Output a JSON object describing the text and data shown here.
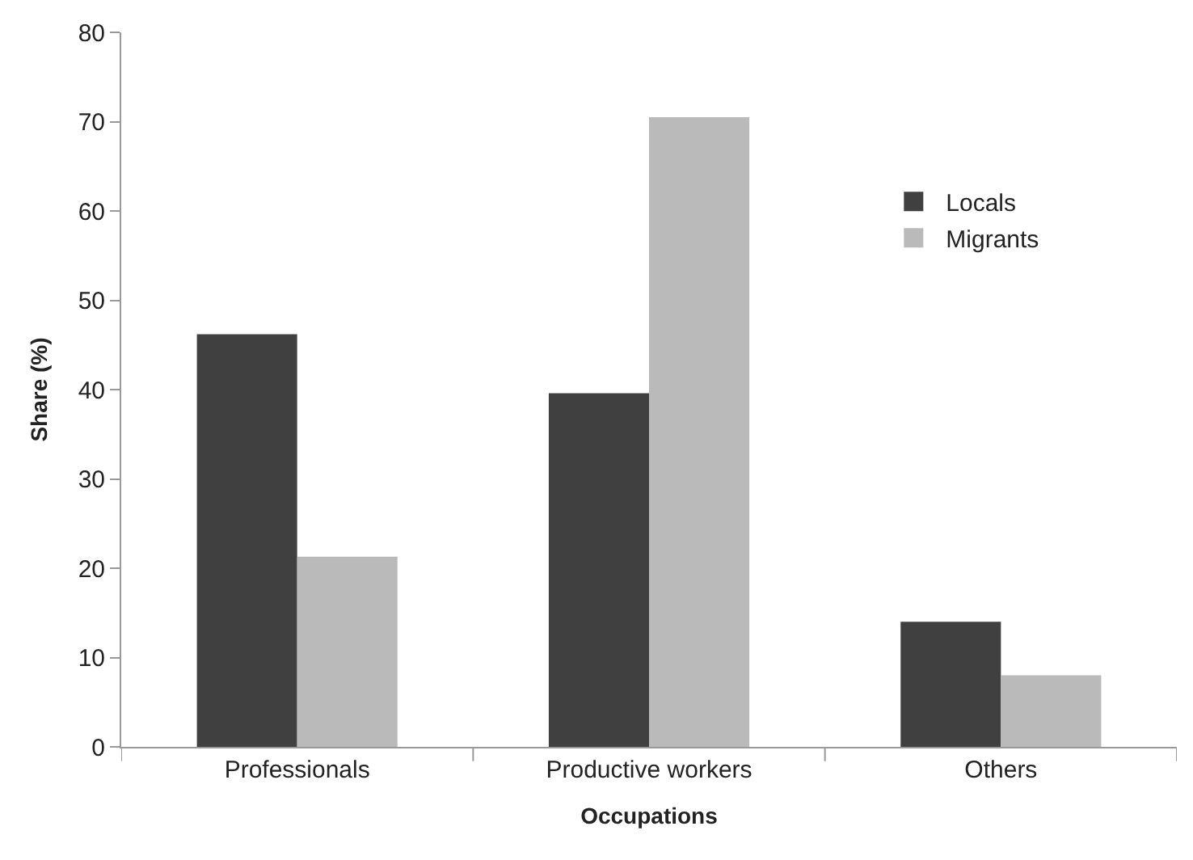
{
  "chart_data": {
    "type": "bar",
    "xlabel": "Occupations",
    "ylabel": "Share (%)",
    "categories": [
      "Professionals",
      "Productive workers",
      "Others"
    ],
    "series": [
      {
        "name": "Locals",
        "color": "#404040",
        "values": [
          46.2,
          39.6,
          14.0
        ]
      },
      {
        "name": "Migrants",
        "color": "#bababa",
        "values": [
          21.3,
          70.5,
          8.0
        ]
      }
    ],
    "ylim": [
      0,
      80
    ],
    "yticks": [
      0,
      10,
      20,
      30,
      40,
      50,
      60,
      70,
      80
    ],
    "legend": "top right"
  }
}
